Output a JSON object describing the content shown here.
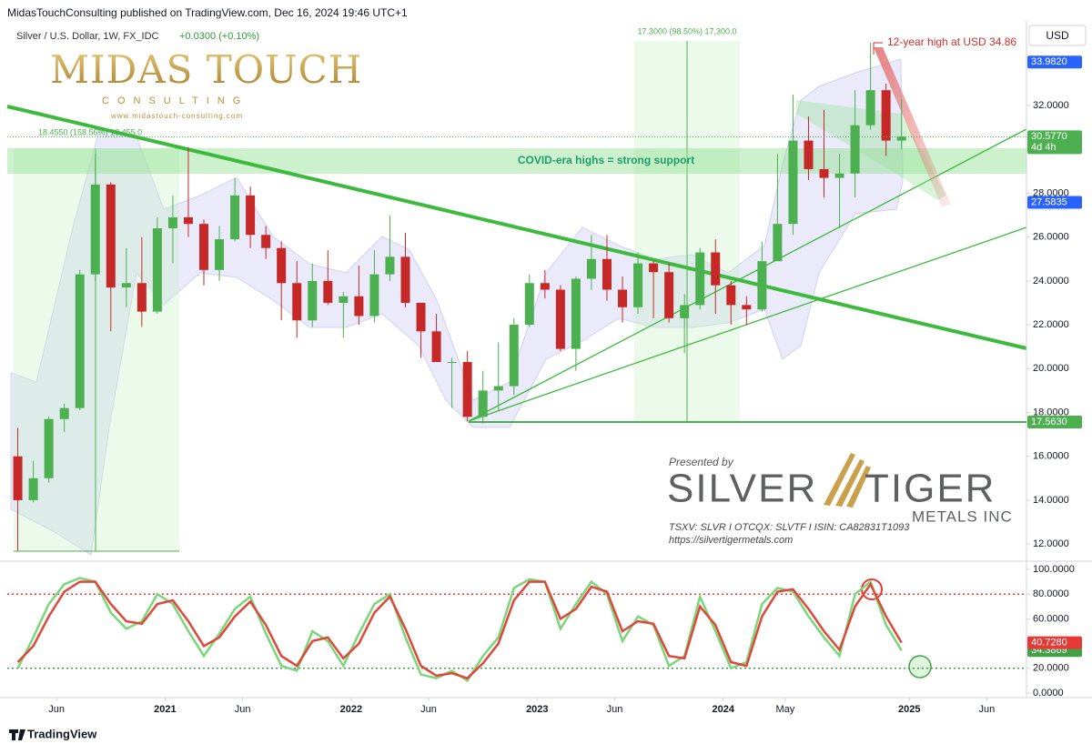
{
  "header": {
    "publisher": "MidasTouchConsulting published on TradingView.com, Dec 16, 2024 19:46 UTC+1"
  },
  "chart_data": [
    {
      "type": "candlestick",
      "title": "Silver / U.S. Dollar, 1W, FX_IDC",
      "subtitle": "+0.0300 (+0.10%)",
      "currency": "USD",
      "x": [
        "2020-03",
        "2020-04",
        "2020-05",
        "2020-06",
        "2020-07",
        "2020-08",
        "2020-09",
        "2020-10",
        "2020-11",
        "2020-12",
        "2021-01",
        "2021-02",
        "2021-03",
        "2021-04",
        "2021-05",
        "2021-06",
        "2021-07",
        "2021-08",
        "2021-09",
        "2021-10",
        "2021-11",
        "2021-12",
        "2022-01",
        "2022-02",
        "2022-03",
        "2022-04",
        "2022-05",
        "2022-06",
        "2022-07",
        "2022-08",
        "2022-09",
        "2022-10",
        "2022-11",
        "2022-12",
        "2023-01",
        "2023-02",
        "2023-03",
        "2023-04",
        "2023-05",
        "2023-06",
        "2023-07",
        "2023-08",
        "2023-09",
        "2023-10",
        "2023-11",
        "2023-12",
        "2024-01",
        "2024-02",
        "2024-03",
        "2024-04",
        "2024-05",
        "2024-06",
        "2024-07",
        "2024-08",
        "2024-09",
        "2024-10",
        "2024-11",
        "2024-12"
      ],
      "open": [
        16.0,
        14.0,
        15.0,
        17.7,
        18.2,
        24.3,
        28.4,
        23.7,
        23.9,
        22.6,
        26.4,
        26.9,
        26.6,
        24.5,
        25.9,
        27.9,
        26.1,
        25.5,
        23.9,
        22.2,
        24.0,
        23.0,
        23.3,
        22.4,
        24.3,
        25.1,
        23.0,
        21.7,
        20.3,
        20.3,
        17.8,
        19.0,
        19.2,
        22.0,
        23.9,
        23.6,
        20.9,
        24.1,
        25.0,
        23.6,
        22.8,
        24.8,
        24.4,
        22.3,
        22.9,
        25.3,
        23.8,
        22.9,
        22.7,
        24.9,
        26.6,
        30.4,
        29.1,
        28.7,
        28.9,
        31.1,
        32.7,
        30.4
      ],
      "high": [
        17.3,
        15.8,
        17.8,
        18.4,
        24.5,
        29.8,
        28.5,
        25.5,
        26.0,
        26.9,
        27.9,
        30.1,
        26.8,
        26.5,
        28.7,
        28.3,
        26.5,
        25.8,
        24.9,
        24.8,
        25.4,
        23.5,
        24.7,
        25.4,
        27.0,
        26.2,
        23.0,
        22.5,
        20.5,
        20.8,
        19.9,
        21.2,
        22.3,
        24.3,
        24.5,
        23.8,
        24.2,
        26.1,
        26.1,
        24.2,
        25.3,
        24.9,
        24.8,
        23.4,
        25.5,
        25.9,
        24.0,
        23.3,
        25.8,
        29.8,
        32.5,
        31.5,
        31.8,
        29.8,
        32.7,
        34.86,
        33.0,
        32.3
      ],
      "low": [
        11.7,
        13.9,
        14.8,
        17.1,
        18.1,
        24.0,
        21.7,
        22.8,
        21.9,
        22.5,
        24.8,
        26.0,
        23.8,
        24.0,
        25.8,
        25.5,
        25.0,
        22.2,
        21.4,
        21.9,
        22.9,
        21.4,
        22.0,
        22.1,
        24.0,
        22.8,
        20.5,
        20.5,
        18.2,
        17.6,
        17.5,
        18.1,
        18.8,
        21.9,
        23.2,
        20.8,
        19.9,
        23.6,
        23.1,
        22.1,
        22.5,
        22.3,
        22.1,
        20.7,
        22.7,
        22.5,
        22.0,
        22.0,
        22.6,
        24.9,
        26.1,
        28.6,
        27.8,
        26.4,
        27.8,
        30.9,
        29.7,
        30.0
      ],
      "close": [
        14.0,
        15.0,
        17.7,
        18.2,
        24.3,
        28.4,
        23.7,
        23.9,
        22.6,
        26.4,
        26.9,
        26.6,
        24.5,
        25.9,
        27.9,
        26.1,
        25.5,
        23.9,
        22.2,
        24.0,
        23.0,
        23.3,
        22.4,
        24.3,
        25.1,
        23.0,
        21.7,
        20.3,
        20.3,
        17.8,
        19.0,
        19.2,
        22.0,
        23.9,
        23.6,
        20.9,
        24.1,
        25.0,
        23.6,
        22.8,
        24.8,
        24.4,
        22.3,
        22.9,
        25.3,
        23.8,
        22.9,
        22.7,
        24.9,
        26.6,
        30.4,
        29.1,
        28.7,
        28.9,
        31.1,
        32.7,
        30.4,
        30.577
      ],
      "up_color": "#4caf50",
      "down_color": "#c62828",
      "xlim": [
        "2020-02-26",
        "2025-08-18"
      ],
      "xticks": [
        {
          "value": "2020-06",
          "label": "Jun"
        },
        {
          "value": "2021-01",
          "label": "2021"
        },
        {
          "value": "2021-06",
          "label": "Jun"
        },
        {
          "value": "2022-01",
          "label": "2022"
        },
        {
          "value": "2022-06",
          "label": "Jun"
        },
        {
          "value": "2023-01",
          "label": "2023"
        },
        {
          "value": "2023-06",
          "label": "Jun"
        },
        {
          "value": "2024-01",
          "label": "2024"
        },
        {
          "value": "2024-05",
          "label": "May"
        },
        {
          "value": "2025-01",
          "label": "2025"
        },
        {
          "value": "2025-06",
          "label": "Jun"
        }
      ],
      "ylim": [
        11.3,
        35.9
      ],
      "yticks": [
        {
          "value": 12,
          "label": "12.0000"
        },
        {
          "value": 14,
          "label": "14.0000"
        },
        {
          "value": 16,
          "label": "16.0000"
        },
        {
          "value": 18,
          "label": "18.0000"
        },
        {
          "value": 20,
          "label": "20.0000"
        },
        {
          "value": 22,
          "label": "22.0000"
        },
        {
          "value": 24,
          "label": "24.0000"
        },
        {
          "value": 26,
          "label": "26.0000"
        },
        {
          "value": 28,
          "label": "28.0000"
        },
        {
          "value": 30,
          "label": "30.0000"
        },
        {
          "value": 32,
          "label": "32.0000"
        }
      ],
      "price_labels": [
        {
          "value": 33.982,
          "label": "33.9820",
          "color": "#2962ff"
        },
        {
          "value": 30.577,
          "label": "30.5770",
          "color": "#4caf50"
        },
        {
          "value": 27.5835,
          "label": "27.5835",
          "color": "#2962ff"
        },
        {
          "value": 17.563,
          "label": "17.5630",
          "color": "#4caf50"
        }
      ],
      "countdown": "4d 4h",
      "annotations": {
        "high": "12-year high at USD 34.86",
        "support": "COVID-era highs = strong support",
        "measure1": "18.4550 (158.56%) 18,455.0",
        "measure2": "17.3000 (98.50%) 17,300.0"
      }
    },
    {
      "type": "line",
      "ylim": [
        -3.7,
        105.9
      ],
      "yticks": [
        {
          "value": 0,
          "label": "0.0000"
        },
        {
          "value": 20,
          "label": "20.0000"
        },
        {
          "value": 40,
          "label": "40.0000"
        },
        {
          "value": 60,
          "label": "60.0000"
        },
        {
          "value": 80,
          "label": "80.0000"
        },
        {
          "value": 100,
          "label": "100.0000"
        }
      ],
      "levels": [
        {
          "value": 80,
          "color": "#e53935"
        },
        {
          "value": 20,
          "color": "#43a047"
        }
      ],
      "series": [
        {
          "color": "#7bd67b",
          "values": [
            20,
            45,
            72,
            88,
            93,
            90,
            65,
            52,
            58,
            80,
            72,
            50,
            30,
            48,
            68,
            78,
            48,
            22,
            18,
            50,
            42,
            22,
            48,
            72,
            80,
            45,
            15,
            12,
            18,
            10,
            30,
            45,
            85,
            92,
            90,
            52,
            72,
            90,
            80,
            42,
            62,
            55,
            22,
            30,
            78,
            50,
            20,
            25,
            72,
            85,
            82,
            62,
            45,
            30,
            80,
            90,
            55,
            34.3869
          ],
          "value_label": "34.3869"
        },
        {
          "color": "#e0473b",
          "values": [
            25,
            38,
            62,
            82,
            90,
            90,
            72,
            58,
            56,
            72,
            75,
            58,
            38,
            45,
            62,
            74,
            55,
            30,
            22,
            42,
            45,
            28,
            40,
            65,
            78,
            52,
            22,
            14,
            16,
            12,
            24,
            40,
            75,
            90,
            90,
            60,
            68,
            86,
            82,
            50,
            58,
            56,
            30,
            28,
            70,
            55,
            25,
            22,
            62,
            82,
            84,
            68,
            50,
            35,
            70,
            88,
            62,
            40.728
          ],
          "value_label": "40.7280"
        }
      ]
    }
  ],
  "logos": {
    "midas": "MIDAS TOUCH",
    "consulting": "CONSULTING",
    "midas_url": "www.midastouch-consulting.com",
    "presented": "Presented by",
    "silver": "SILVER",
    "tiger": "TIGER",
    "metals": "METALS INC",
    "listing": "TSXV: SLVR  I  OTCQX: SLVTF  I  ISIN: CA82831T1093",
    "tiger_url": "https://silvertigermetals.com"
  },
  "footer": "TradingView"
}
